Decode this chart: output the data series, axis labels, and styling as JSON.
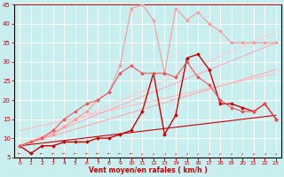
{
  "xlabel": "Vent moyen/en rafales ( km/h )",
  "xlim": [
    -0.5,
    23.5
  ],
  "ylim": [
    5,
    45
  ],
  "xticks": [
    0,
    1,
    2,
    3,
    4,
    5,
    6,
    7,
    8,
    9,
    10,
    11,
    12,
    13,
    14,
    15,
    16,
    17,
    18,
    19,
    20,
    21,
    22,
    23
  ],
  "yticks": [
    5,
    10,
    15,
    20,
    25,
    30,
    35,
    40,
    45
  ],
  "background_color": "#c8eef0",
  "grid_color": "#ffffff",
  "lines": [
    {
      "x": [
        0,
        23
      ],
      "y": [
        8,
        16
      ],
      "color": "#cc0000",
      "lw": 0.8,
      "marker": null,
      "ms": 0
    },
    {
      "x": [
        0,
        23
      ],
      "y": [
        8,
        28
      ],
      "color": "#ffaaaa",
      "lw": 0.8,
      "marker": null,
      "ms": 0
    },
    {
      "x": [
        0,
        23
      ],
      "y": [
        12,
        27
      ],
      "color": "#ffbbbb",
      "lw": 0.8,
      "marker": null,
      "ms": 0
    },
    {
      "x": [
        0,
        23
      ],
      "y": [
        8,
        38
      ],
      "color": "#ffcccc",
      "lw": 0.8,
      "marker": null,
      "ms": 0
    },
    {
      "x": [
        0,
        23
      ],
      "y": [
        8,
        35
      ],
      "color": "#ffaabb",
      "lw": 0.8,
      "marker": null,
      "ms": 0
    },
    {
      "x": [
        0,
        1,
        2,
        3,
        4,
        5,
        6,
        7,
        8,
        9,
        10,
        11,
        12,
        13,
        14,
        15,
        16,
        17,
        18,
        19,
        20,
        21,
        22,
        23
      ],
      "y": [
        8,
        6,
        8,
        8,
        9,
        9,
        9,
        10,
        10,
        11,
        12,
        17,
        27,
        11,
        16,
        31,
        32,
        28,
        19,
        19,
        18,
        17,
        19,
        15
      ],
      "color": "#cc0000",
      "lw": 1.0,
      "marker": "D",
      "ms": 2
    },
    {
      "x": [
        0,
        1,
        2,
        3,
        4,
        5,
        6,
        7,
        8,
        9,
        10,
        11,
        12,
        13,
        14,
        15,
        16,
        17,
        18,
        19,
        20,
        21,
        22,
        23
      ],
      "y": [
        8,
        9,
        10,
        11,
        13,
        15,
        17,
        20,
        22,
        29,
        44,
        45,
        41,
        27,
        44,
        41,
        43,
        40,
        38,
        35,
        35,
        35,
        35,
        35
      ],
      "color": "#ff9999",
      "lw": 0.8,
      "marker": "D",
      "ms": 2
    },
    {
      "x": [
        0,
        1,
        2,
        3,
        4,
        5,
        6,
        7,
        8,
        9,
        10,
        11,
        12,
        13,
        14,
        15,
        16,
        17,
        18,
        19,
        20,
        21,
        22,
        23
      ],
      "y": [
        8,
        9,
        10,
        12,
        15,
        17,
        19,
        20,
        22,
        27,
        29,
        27,
        27,
        27,
        26,
        30,
        26,
        24,
        20,
        18,
        17,
        17,
        19,
        15
      ],
      "color": "#ee5555",
      "lw": 0.8,
      "marker": "D",
      "ms": 2
    }
  ]
}
